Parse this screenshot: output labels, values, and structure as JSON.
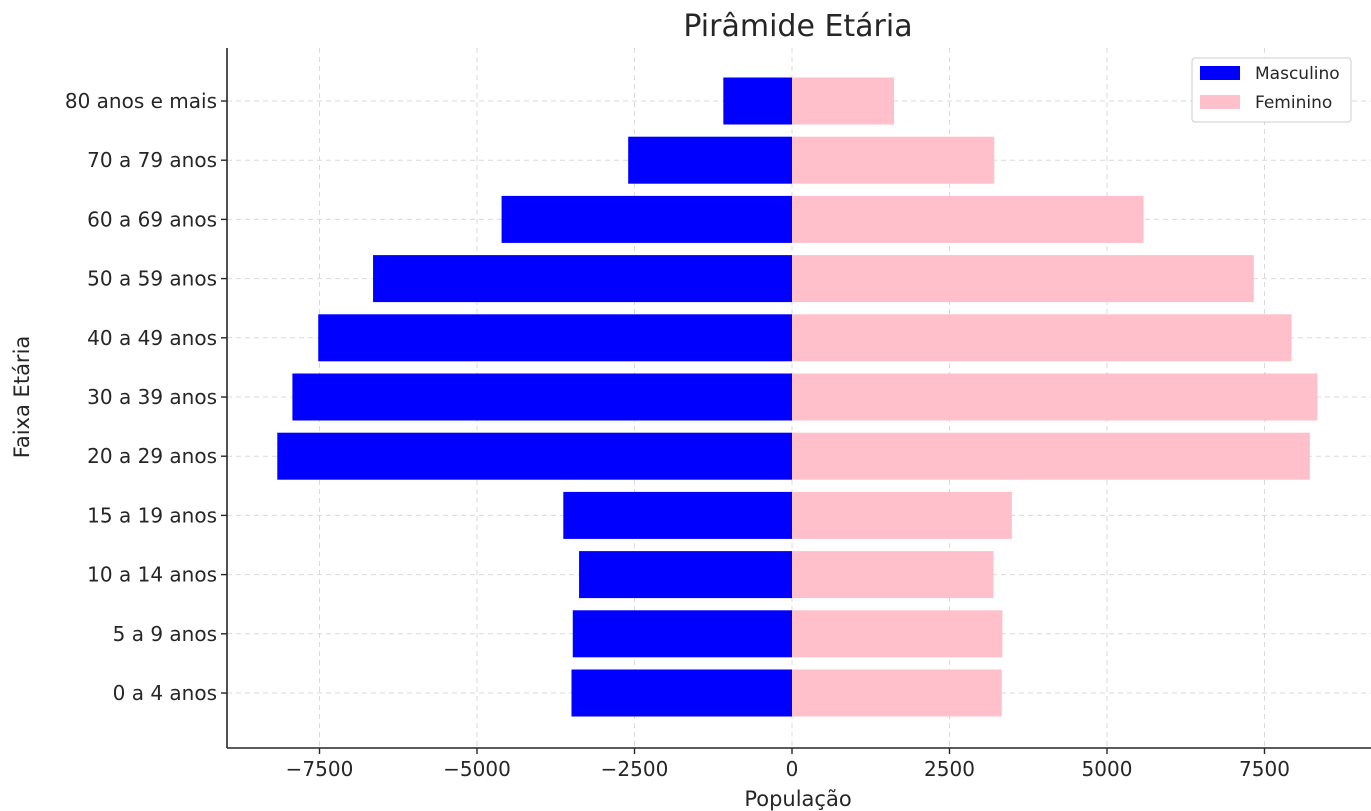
{
  "chart_data": {
    "type": "bar",
    "orientation": "horizontal",
    "title": "Pirâmide Etária",
    "xlabel": "População",
    "ylabel": "Faixa Etária",
    "xlim": [
      -9000,
      9000
    ],
    "x_ticks": [
      -7500,
      -5000,
      -2500,
      0,
      2500,
      5000,
      7500
    ],
    "x_tick_labels": [
      "−7500",
      "−5000",
      "−2500",
      "0",
      "2500",
      "5000",
      "7500"
    ],
    "categories": [
      "0 a 4 anos",
      "5 a 9 anos",
      "10 a 14 anos",
      "15 a 19 anos",
      "20 a 29 anos",
      "30 a 39 anos",
      "40 a 49 anos",
      "50 a 59 anos",
      "60 a 69 anos",
      "70 a 79 anos",
      "80 anos e mais"
    ],
    "series": [
      {
        "name": "Masculino",
        "color": "#0000ff",
        "values": [
          -3500,
          -3480,
          -3380,
          -3630,
          -8170,
          -7930,
          -7520,
          -6650,
          -4610,
          -2600,
          -1090
        ]
      },
      {
        "name": "Feminino",
        "color": "#ffc0cb",
        "values": [
          3330,
          3340,
          3200,
          3490,
          8220,
          8340,
          7930,
          7330,
          5580,
          3210,
          1620
        ]
      }
    ],
    "grid": true,
    "legend_position": "top-right"
  }
}
